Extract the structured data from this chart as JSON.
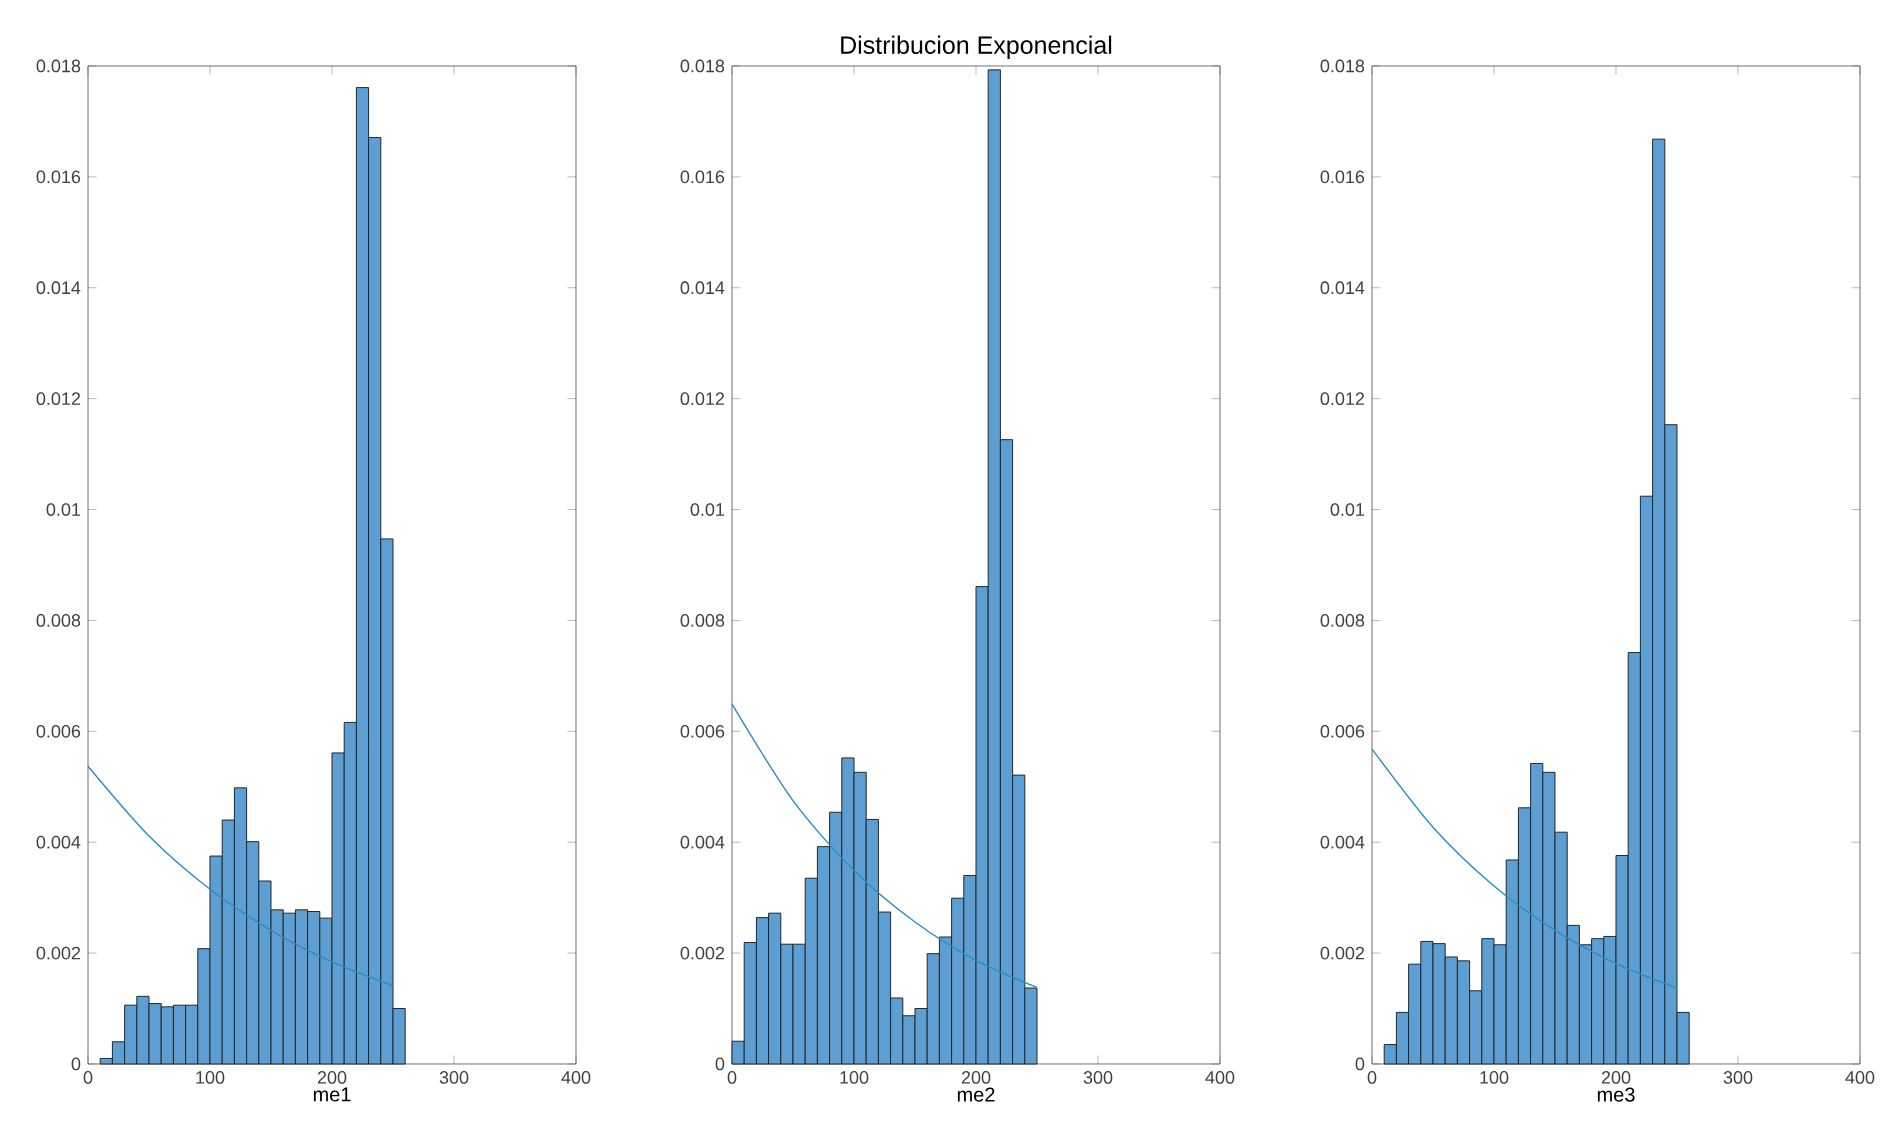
{
  "chart_data": [
    {
      "type": "histogram",
      "xlabel": "me1",
      "xlim": [
        0,
        400
      ],
      "xticks": [
        0,
        100,
        200,
        300,
        400
      ],
      "ylim": [
        0,
        0.018
      ],
      "yticks": [
        0,
        0.002,
        0.004,
        0.006,
        0.008,
        0.01,
        0.012,
        0.014,
        0.016,
        0.018
      ],
      "series": [
        {
          "color": "#5d9fd3",
          "bins": [
            10,
            20,
            30,
            40,
            50,
            60,
            70,
            80,
            90,
            100,
            110,
            120,
            130,
            140,
            150,
            160,
            170,
            180,
            190,
            200,
            210,
            220,
            230,
            240,
            250,
            260
          ],
          "values": [
            0.0001,
            0.0004,
            0.00106,
            0.00122,
            0.00109,
            0.00103,
            0.00106,
            0.00106,
            0.00208,
            0.00375,
            0.0044,
            0.00498,
            0.00401,
            0.0033,
            0.00278,
            0.00272,
            0.00278,
            0.00275,
            0.00263,
            0.00561,
            0.00616,
            0.01761,
            0.01671,
            0.00947,
            0.001
          ]
        },
        {
          "type": "line",
          "color": "#2b8cc4",
          "x": [
            0,
            50,
            100,
            150,
            200,
            250
          ],
          "values": [
            0.00537,
            0.00411,
            0.00315,
            0.00241,
            0.00184,
            0.00141
          ]
        }
      ]
    },
    {
      "type": "histogram",
      "title": "Distribucion Exponencial",
      "xlabel": "me2",
      "xlim": [
        0,
        400
      ],
      "xticks": [
        0,
        100,
        200,
        300,
        400
      ],
      "ylim": [
        0,
        0.018
      ],
      "yticks": [
        0,
        0.002,
        0.004,
        0.006,
        0.008,
        0.01,
        0.012,
        0.014,
        0.016,
        0.018
      ],
      "series": [
        {
          "color": "#5d9fd3",
          "bins": [
            0,
            10,
            20,
            30,
            40,
            50,
            60,
            70,
            80,
            90,
            100,
            110,
            120,
            130,
            140,
            150,
            160,
            170,
            180,
            190,
            200,
            210,
            220,
            230,
            240,
            250
          ],
          "values": [
            0.00041,
            0.00219,
            0.00264,
            0.00272,
            0.00216,
            0.00216,
            0.00335,
            0.00392,
            0.00454,
            0.00552,
            0.00526,
            0.00441,
            0.00274,
            0.00119,
            0.00087,
            0.001,
            0.00199,
            0.00229,
            0.00299,
            0.0034,
            0.00861,
            0.01793,
            0.01126,
            0.00521,
            0.00137
          ]
        },
        {
          "type": "line",
          "color": "#2b8cc4",
          "x": [
            0,
            50,
            100,
            150,
            200,
            250
          ],
          "values": [
            0.00649,
            0.00475,
            0.00349,
            0.00256,
            0.00187,
            0.00138
          ]
        }
      ]
    },
    {
      "type": "histogram",
      "xlabel": "me3",
      "xlim": [
        0,
        400
      ],
      "xticks": [
        0,
        100,
        200,
        300,
        400
      ],
      "ylim": [
        0,
        0.018
      ],
      "yticks": [
        0,
        0.002,
        0.004,
        0.006,
        0.008,
        0.01,
        0.012,
        0.014,
        0.016,
        0.018
      ],
      "series": [
        {
          "color": "#5d9fd3",
          "bins": [
            10,
            20,
            30,
            40,
            50,
            60,
            70,
            80,
            90,
            100,
            110,
            120,
            130,
            140,
            150,
            160,
            170,
            180,
            190,
            200,
            210,
            220,
            230,
            240,
            250,
            260
          ],
          "values": [
            0.00035,
            0.00093,
            0.0018,
            0.00221,
            0.00217,
            0.00193,
            0.00186,
            0.00132,
            0.00226,
            0.00215,
            0.00368,
            0.00462,
            0.00542,
            0.00526,
            0.00418,
            0.0025,
            0.00215,
            0.00226,
            0.0023,
            0.00376,
            0.00742,
            0.01024,
            0.01668,
            0.01153,
            0.00093
          ]
        },
        {
          "type": "line",
          "color": "#2b8cc4",
          "x": [
            0,
            50,
            100,
            150,
            200,
            250
          ],
          "values": [
            0.00568,
            0.00427,
            0.00321,
            0.00241,
            0.00181,
            0.00137
          ]
        }
      ]
    }
  ]
}
